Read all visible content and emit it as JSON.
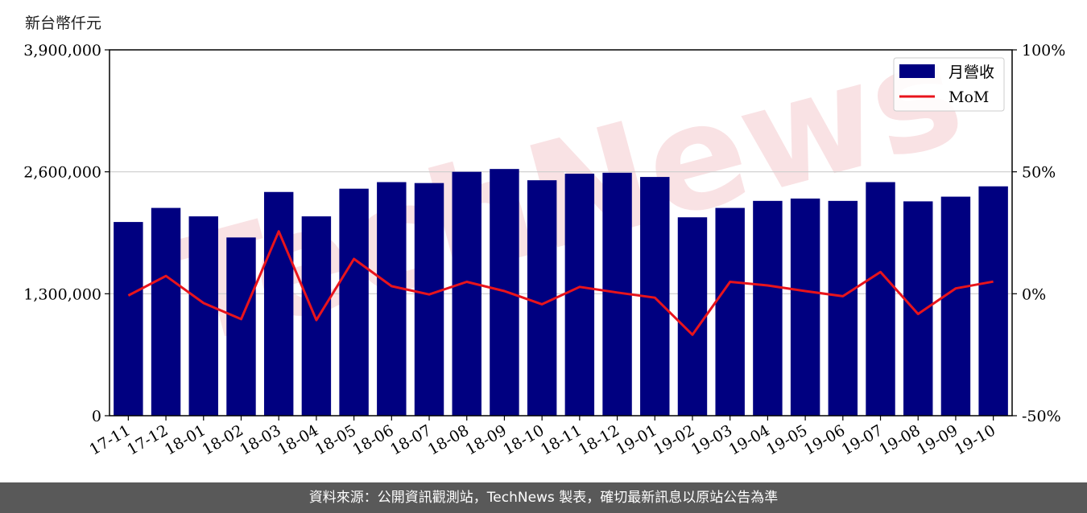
{
  "unit_label": "新台幣仟元",
  "watermark": "TechNews",
  "footer": "資料來源：公開資訊觀測站，TechNews 製表，確切最新訊息以原站公告為準",
  "colors": {
    "bar": "#000080",
    "line": "#e8141c",
    "grid": "#cccccc",
    "watermark": "#f7d9db"
  },
  "chart_data": {
    "type": "bar",
    "categories": [
      "17-11",
      "17-12",
      "18-01",
      "18-02",
      "18-03",
      "18-04",
      "18-05",
      "18-06",
      "18-07",
      "18-08",
      "18-09",
      "18-10",
      "18-11",
      "18-12",
      "19-01",
      "19-02",
      "19-03",
      "19-04",
      "19-05",
      "19-06",
      "19-07",
      "19-08",
      "19-09",
      "19-10"
    ],
    "series": [
      {
        "name": "月營收",
        "axis": "left",
        "type": "bar",
        "values": [
          2065000,
          2215000,
          2125000,
          1900000,
          2385000,
          2125000,
          2420000,
          2490000,
          2480000,
          2600000,
          2630000,
          2510000,
          2580000,
          2590000,
          2545000,
          2115000,
          2215000,
          2290000,
          2315000,
          2290000,
          2490000,
          2285000,
          2335000,
          2445000
        ]
      },
      {
        "name": "MoM",
        "axis": "right",
        "type": "line",
        "unit": "%",
        "values": [
          -0.7,
          7.3,
          -3.8,
          -10.4,
          25.6,
          -10.8,
          14.3,
          3.1,
          -0.3,
          4.9,
          1.1,
          -4.3,
          2.8,
          0.5,
          -1.6,
          -16.8,
          4.9,
          3.4,
          1.1,
          -1.0,
          8.9,
          -8.3,
          2.2,
          5.0
        ]
      }
    ],
    "y_left": {
      "range": [
        0,
        3900000
      ],
      "ticks": [
        0,
        1300000,
        2600000,
        3900000
      ],
      "tick_labels": [
        "0",
        "1,300,000",
        "2,600,000",
        "3,900,000"
      ]
    },
    "y_right": {
      "range": [
        -50,
        100
      ],
      "ticks": [
        -50,
        0,
        50,
        100
      ],
      "tick_labels": [
        "-50%",
        "0%",
        "50%",
        "100%"
      ]
    },
    "grid": "horizontal",
    "legend_position": "top-right"
  }
}
